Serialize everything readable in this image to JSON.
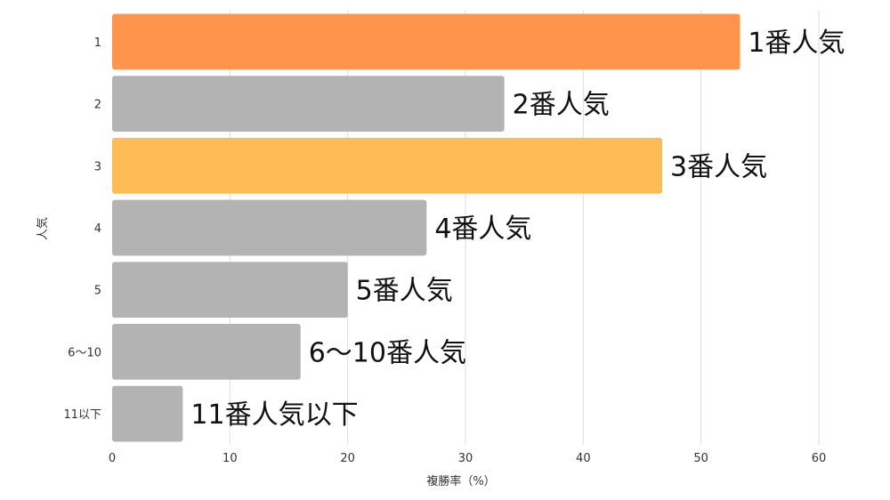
{
  "chart_data": {
    "type": "bar",
    "orientation": "horizontal",
    "categories": [
      "1",
      "2",
      "3",
      "4",
      "5",
      "6〜10",
      "11以下"
    ],
    "values": [
      53.3,
      33.3,
      46.7,
      26.7,
      20.0,
      16.0,
      6.0
    ],
    "bar_labels": [
      "1番人気",
      "2番人気",
      "3番人気",
      "4番人気",
      "5番人気",
      "6〜10番人気",
      "11番人気以下"
    ],
    "bar_colors": [
      "#ff944d",
      "#b3b3b3",
      "#ffbb55",
      "#b3b3b3",
      "#b3b3b3",
      "#b3b3b3",
      "#b3b3b3"
    ],
    "xlabel": "複勝率（%）",
    "ylabel": "人気",
    "xlim": [
      0,
      60
    ],
    "xticks": [
      0,
      10,
      20,
      30,
      40,
      50,
      60
    ],
    "grid": "vertical"
  }
}
